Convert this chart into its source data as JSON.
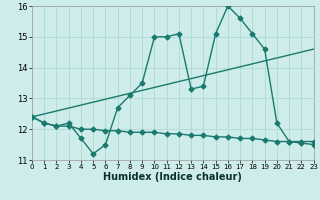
{
  "xlabel": "Humidex (Indice chaleur)",
  "bg_color": "#ceecea",
  "grid_color": "#aed8d5",
  "line_color": "#1a7a6e",
  "xlim": [
    0,
    23
  ],
  "ylim": [
    11,
    16
  ],
  "yticks": [
    11,
    12,
    13,
    14,
    15,
    16
  ],
  "xticks": [
    0,
    1,
    2,
    3,
    4,
    5,
    6,
    7,
    8,
    9,
    10,
    11,
    12,
    13,
    14,
    15,
    16,
    17,
    18,
    19,
    20,
    21,
    22,
    23
  ],
  "series1_x": [
    0,
    1,
    2,
    3,
    4,
    5,
    6,
    7,
    8,
    9,
    10,
    11,
    12,
    13,
    14,
    15,
    16,
    17,
    18,
    19,
    20,
    21,
    22,
    23
  ],
  "series1_y": [
    12.4,
    12.2,
    12.1,
    12.2,
    11.7,
    11.2,
    11.5,
    12.7,
    13.1,
    13.5,
    15.0,
    15.0,
    15.1,
    13.3,
    13.4,
    15.1,
    16.0,
    15.6,
    15.1,
    14.6,
    12.2,
    11.6,
    11.6,
    11.6
  ],
  "series2_x": [
    0,
    1,
    2,
    3,
    4,
    5,
    6,
    7,
    8,
    9,
    10,
    11,
    12,
    13,
    14,
    15,
    16,
    17,
    18,
    19,
    20,
    21,
    22,
    23
  ],
  "series2_y": [
    12.4,
    12.2,
    12.1,
    12.1,
    12.0,
    12.0,
    11.95,
    11.95,
    11.9,
    11.9,
    11.9,
    11.85,
    11.85,
    11.8,
    11.8,
    11.75,
    11.75,
    11.7,
    11.7,
    11.65,
    11.6,
    11.6,
    11.55,
    11.5
  ],
  "series3_x": [
    0,
    23
  ],
  "series3_y": [
    12.4,
    14.6
  ],
  "marker": "D",
  "marker_size": 2.5,
  "linewidth": 1.0
}
